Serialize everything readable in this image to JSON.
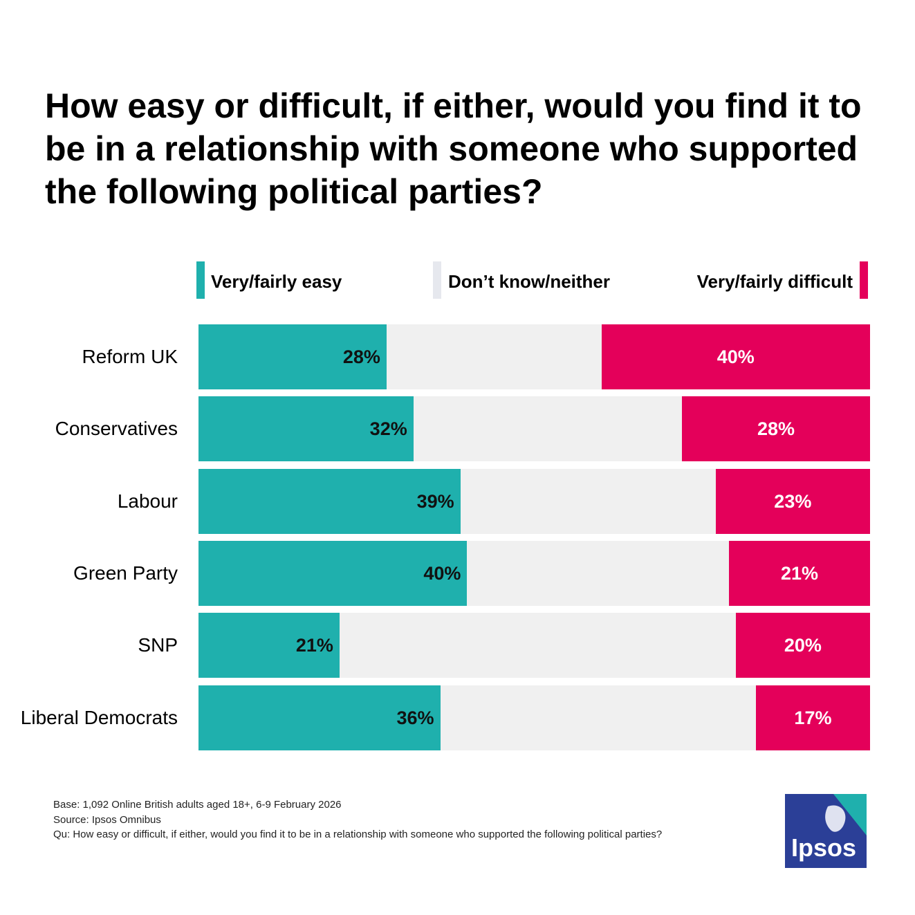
{
  "chart_data": {
    "type": "stacked_bar_horizontal",
    "title": "How easy or difficult, if either, would you find it to be in a relationship with someone who supported the following political parties?",
    "categories": [
      "Reform UK",
      "Conservatives",
      "Labour",
      "Green Party",
      "SNP",
      "Liberal Democrats"
    ],
    "series": [
      {
        "name": "Very/fairly easy",
        "color": "#1fb0ad",
        "values": [
          28,
          32,
          39,
          40,
          21,
          36
        ],
        "value_labels": [
          "28%",
          "32%",
          "39%",
          "40%",
          "21%",
          "36%"
        ]
      },
      {
        "name": "Don’t know/neither",
        "color": "#f0f0f0",
        "values": [
          32,
          40,
          38,
          39,
          59,
          47
        ]
      },
      {
        "name": "Very/fairly difficult",
        "color": "#e4005a",
        "values": [
          40,
          28,
          23,
          21,
          20,
          17
        ],
        "value_labels": [
          "40%",
          "28%",
          "23%",
          "21%",
          "20%",
          "17%"
        ]
      }
    ],
    "xlim": [
      0,
      100
    ],
    "notes": [
      "Base: 1,092 Online British adults aged 18+, 6-9 February 2026",
      "Source: Ipsos Omnibus",
      "Qu: How easy or difficult, if either, would you find it to be in a relationship with someone who supported the following political parties?"
    ],
    "logo": "Ipsos"
  }
}
